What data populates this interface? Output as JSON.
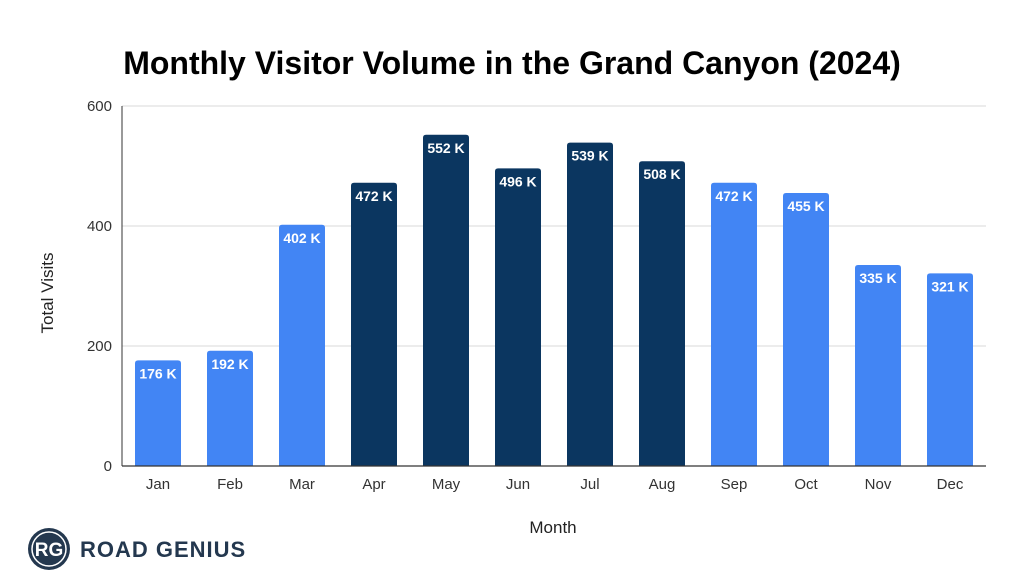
{
  "chart_data": {
    "type": "bar",
    "title": "Monthly Visitor Volume in the Grand Canyon (2024)",
    "xlabel": "Month",
    "ylabel": "Total Visits",
    "ylim": [
      0,
      600
    ],
    "yticks": [
      0,
      200,
      400,
      600
    ],
    "grid": true,
    "categories": [
      "Jan",
      "Feb",
      "Mar",
      "Apr",
      "May",
      "Jun",
      "Jul",
      "Aug",
      "Sep",
      "Oct",
      "Nov",
      "Dec"
    ],
    "values": [
      176,
      192,
      402,
      472,
      552,
      496,
      539,
      508,
      472,
      455,
      335,
      321
    ],
    "data_labels": [
      "176 K",
      "192 K",
      "402 K",
      "472 K",
      "552 K",
      "496 K",
      "539 K",
      "508 K",
      "472 K",
      "455 K",
      "335 K",
      "321 K"
    ],
    "bar_colors": [
      "#4285f4",
      "#4285f4",
      "#4285f4",
      "#0b3660",
      "#0b3660",
      "#0b3660",
      "#0b3660",
      "#0b3660",
      "#4285f4",
      "#4285f4",
      "#4285f4",
      "#4285f4"
    ]
  },
  "logo": {
    "monogram": "RG",
    "text": "ROAD GENIUS"
  },
  "colors": {
    "light_bar": "#4285f4",
    "dark_bar": "#0b3660",
    "gridline": "#d9d9d9",
    "axis": "#333333"
  }
}
